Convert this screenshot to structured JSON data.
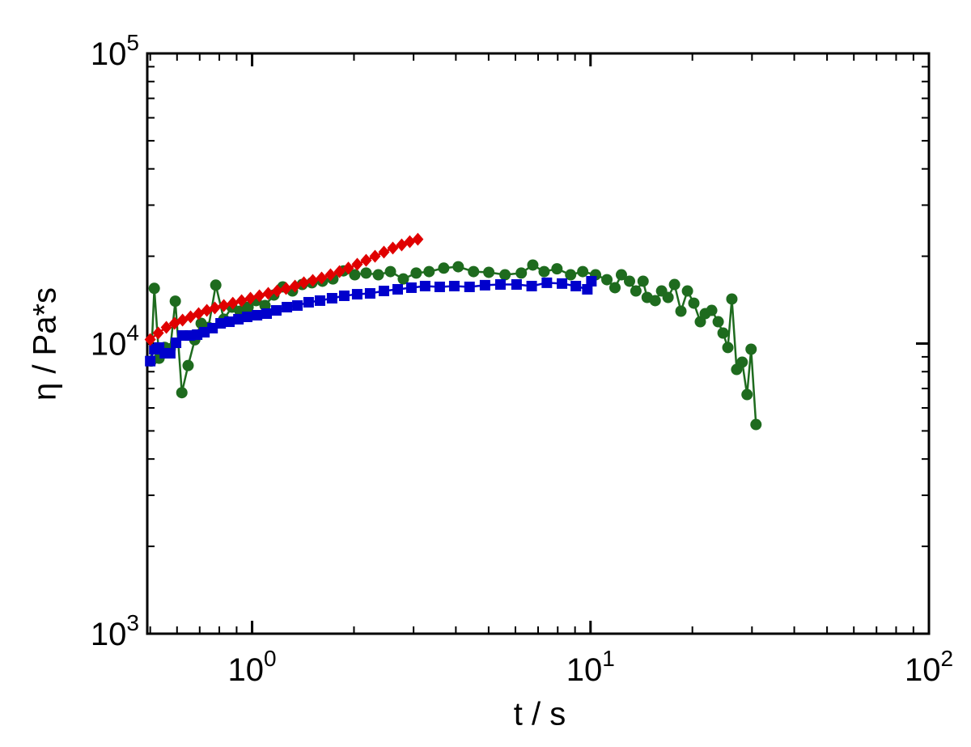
{
  "chart_data": {
    "type": "line",
    "xlabel": "t / s",
    "ylabel": "η / Pa*s",
    "xscale": "log",
    "yscale": "log",
    "xlim": [
      0.49,
      100
    ],
    "ylim": [
      1000,
      100000
    ],
    "xticks": [
      {
        "value": 1,
        "label": "10^0"
      },
      {
        "value": 10,
        "label": "10^1"
      },
      {
        "value": 100,
        "label": "10^2"
      }
    ],
    "yticks": [
      {
        "value": 1000,
        "label": "10^3"
      },
      {
        "value": 10000,
        "label": "10^4"
      },
      {
        "value": 100000,
        "label": "10^5"
      }
    ],
    "xminorticks": [
      0.5,
      0.6,
      0.7,
      0.8,
      0.9,
      2,
      3,
      4,
      5,
      6,
      7,
      8,
      9,
      20,
      30,
      40,
      50,
      60,
      70,
      80,
      90
    ],
    "yminorticks": [
      2000,
      3000,
      4000,
      5000,
      6000,
      7000,
      8000,
      9000,
      20000,
      30000,
      40000,
      50000,
      60000,
      70000,
      80000,
      90000
    ],
    "series": [
      {
        "color": "#1e6b1e",
        "marker": "circle",
        "x": [
          0.503,
          0.514,
          0.531,
          0.552,
          0.573,
          0.593,
          0.62,
          0.647,
          0.677,
          0.707,
          0.743,
          0.781,
          0.825,
          0.872,
          0.921,
          0.973,
          1.028,
          1.092,
          1.16,
          1.232,
          1.316,
          1.406,
          1.502,
          1.614,
          1.733,
          1.862,
          2.011,
          2.172,
          2.36,
          2.563,
          2.798,
          3.054,
          3.334,
          3.684,
          4.066,
          4.512,
          5.006,
          5.589,
          6.243,
          6.752,
          7.294,
          7.96,
          8.735,
          9.485,
          10.35,
          11.18,
          11.81,
          12.34,
          13.04,
          13.62,
          14.3,
          14.7,
          15.53,
          16.22,
          16.95,
          17.71,
          18.5,
          19.34,
          20.2,
          21.11,
          21.82,
          22.81,
          23.84,
          24.64,
          25.46,
          26.16,
          27.03,
          28.07,
          29.01,
          29.82,
          30.83
        ],
        "values": [
          8700,
          15500,
          8900,
          9700,
          9600,
          14000,
          6770,
          8400,
          10300,
          11740,
          11370,
          15900,
          12130,
          13350,
          12930,
          13350,
          14060,
          13520,
          14700,
          15680,
          15180,
          15980,
          16200,
          16400,
          16700,
          17800,
          17260,
          17500,
          17260,
          17700,
          16700,
          17500,
          17700,
          18200,
          18400,
          17700,
          17600,
          17260,
          17500,
          18650,
          17700,
          18100,
          17260,
          17700,
          17260,
          16600,
          15580,
          17260,
          16400,
          15180,
          16400,
          14420,
          14060,
          15180,
          14420,
          15980,
          12930,
          15180,
          13780,
          11890,
          12680,
          13010,
          11890,
          10870,
          9690,
          14240,
          8140,
          8630,
          6670,
          9560,
          5260
        ]
      },
      {
        "color": "#0000cc",
        "marker": "square",
        "x": [
          0.5,
          0.514,
          0.531,
          0.552,
          0.573,
          0.596,
          0.623,
          0.655,
          0.688,
          0.723,
          0.764,
          0.807,
          0.857,
          0.911,
          0.967,
          1.034,
          1.104,
          1.179,
          1.267,
          1.361,
          1.469,
          1.587,
          1.723,
          1.872,
          2.044,
          2.232,
          2.452,
          2.693,
          2.956,
          3.245,
          3.584,
          3.958,
          4.39,
          4.877,
          5.417,
          6.046,
          6.701,
          7.43,
          8.237,
          9.049,
          9.786,
          10.06
        ],
        "values": [
          8700,
          9560,
          9690,
          9260,
          9260,
          10060,
          10660,
          10660,
          10730,
          10940,
          11300,
          11740,
          11890,
          12130,
          12360,
          12520,
          12680,
          13010,
          13350,
          13520,
          13880,
          14060,
          14330,
          14610,
          14790,
          14890,
          15180,
          15380,
          15580,
          15780,
          15680,
          15780,
          15680,
          15890,
          15980,
          15980,
          15780,
          16200,
          16100,
          15780,
          15380,
          16400
        ]
      },
      {
        "color": "#e00000",
        "marker": "diamond",
        "x": [
          0.5,
          0.528,
          0.558,
          0.59,
          0.623,
          0.658,
          0.695,
          0.735,
          0.776,
          0.825,
          0.877,
          0.931,
          0.989,
          1.051,
          1.116,
          1.186,
          1.26,
          1.339,
          1.422,
          1.511,
          1.605,
          1.705,
          1.812,
          1.925,
          2.045,
          2.172,
          2.308,
          2.452,
          2.605,
          2.767,
          2.924,
          3.088
        ],
        "values": [
          10330,
          10870,
          11370,
          11740,
          12050,
          12360,
          12680,
          13010,
          13270,
          13520,
          13780,
          14060,
          14330,
          14610,
          14890,
          15180,
          15480,
          15780,
          16200,
          16500,
          16830,
          17260,
          17700,
          18200,
          18770,
          19370,
          20000,
          20660,
          21340,
          21880,
          22440,
          22880
        ]
      }
    ]
  }
}
